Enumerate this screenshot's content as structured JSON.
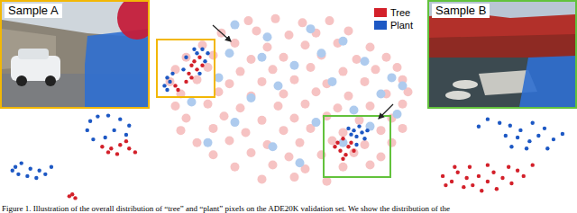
{
  "figure": {
    "caption": "Figure 1. Illustration of the overall distribution of “tree” and “plant” pixels on the ADE20K validation set. We show the distribution of the",
    "sample_a": {
      "label": "Sample A",
      "border_color": "#f2b705"
    },
    "sample_b": {
      "label": "Sample B",
      "border_color": "#62c23c"
    }
  },
  "chart_data": [
    {
      "type": "scatter",
      "xlim": [
        0,
        100
      ],
      "ylim": [
        0,
        100
      ],
      "tick_labels": false,
      "legend": "top-right",
      "series": [
        {
          "color": "#f6c3c3",
          "x": [
            35,
            45,
            55,
            65,
            25,
            38,
            50,
            60,
            72,
            18,
            30,
            42,
            56,
            68,
            80,
            12,
            22,
            36,
            48,
            62,
            75,
            86,
            8,
            20,
            32,
            44,
            58,
            70,
            82,
            90,
            6,
            16,
            28,
            40,
            52,
            64,
            78,
            92,
            10,
            24,
            36,
            48,
            60,
            72,
            86,
            94,
            8,
            20,
            32,
            46,
            56,
            68,
            80,
            92,
            12,
            26,
            40,
            52,
            64,
            76,
            88,
            10,
            22,
            34,
            48,
            58,
            70,
            84,
            92,
            16,
            28,
            42,
            54,
            66,
            78,
            88,
            22,
            36,
            50,
            62,
            74,
            84,
            30,
            44,
            56,
            70,
            80,
            40,
            52,
            64
          ],
          "y": [
            90,
            91,
            89,
            90,
            84,
            85,
            83,
            84,
            85,
            78,
            79,
            77,
            78,
            79,
            77,
            72,
            73,
            71,
            72,
            73,
            71,
            72,
            66,
            67,
            65,
            66,
            67,
            65,
            66,
            67,
            60,
            61,
            59,
            60,
            61,
            59,
            60,
            61,
            54,
            55,
            53,
            54,
            55,
            53,
            54,
            55,
            48,
            49,
            47,
            48,
            49,
            47,
            48,
            49,
            42,
            43,
            41,
            42,
            43,
            41,
            42,
            36,
            37,
            35,
            36,
            37,
            35,
            36,
            37,
            30,
            31,
            29,
            30,
            31,
            29,
            30,
            24,
            25,
            23,
            24,
            25,
            23,
            18,
            19,
            17,
            18,
            19,
            12,
            13,
            11
          ]
        },
        {
          "color": "#aecbee",
          "x": [
            30,
            42,
            58,
            70,
            62,
            78,
            88,
            84,
            90,
            52,
            40,
            24,
            14,
            46,
            66,
            74,
            60,
            30,
            20,
            44,
            70,
            80,
            54,
            36,
            92,
            28
          ],
          "y": [
            88,
            82,
            86,
            80,
            74,
            70,
            62,
            54,
            44,
            68,
            72,
            62,
            50,
            58,
            60,
            46,
            40,
            40,
            30,
            28,
            30,
            38,
            20,
            52,
            58,
            74
          ]
        },
        {
          "name": "Tree",
          "color": "#d3202a",
          "x": [
            14,
            15,
            16,
            13,
            17,
            12,
            14,
            18,
            8,
            9,
            68,
            69,
            70,
            71,
            72,
            70,
            73,
            67,
            74
          ],
          "y": [
            68,
            70,
            66,
            64,
            72,
            60,
            62,
            68,
            58,
            56,
            30,
            26,
            32,
            24,
            28,
            22,
            30,
            28,
            26
          ]
        },
        {
          "name": "Plant",
          "color": "#1d58c4",
          "x": [
            5,
            6,
            4,
            7,
            5,
            16,
            18,
            15,
            17,
            19,
            12,
            11,
            20,
            74,
            75,
            76,
            77,
            73,
            78,
            75,
            79,
            72
          ],
          "y": [
            62,
            60,
            58,
            64,
            56,
            74,
            76,
            76,
            64,
            70,
            72,
            66,
            74,
            36,
            33,
            38,
            35,
            34,
            32,
            29,
            36,
            37
          ]
        }
      ]
    },
    {
      "type": "scatter",
      "xlim": [
        0,
        100
      ],
      "ylim": [
        0,
        100
      ],
      "tick_labels": false,
      "series": [
        {
          "name": "Plant",
          "color": "#1d58c4",
          "x": [
            60,
            65,
            72,
            80,
            86,
            84,
            58,
            62,
            70,
            76,
            10,
            14,
            20,
            26,
            18,
            30,
            12,
            24,
            34,
            8
          ],
          "y": [
            90,
            95,
            96,
            92,
            85,
            75,
            80,
            70,
            72,
            80,
            40,
            44,
            38,
            36,
            30,
            32,
            32,
            28,
            40,
            36
          ]
        },
        {
          "name": "Tree",
          "color": "#d3202a",
          "x": [
            68,
            74,
            80,
            86,
            78,
            72,
            84,
            90,
            46,
            48,
            50
          ],
          "y": [
            62,
            60,
            64,
            60,
            54,
            56,
            68,
            56,
            8,
            10,
            6
          ]
        }
      ]
    },
    {
      "type": "scatter",
      "xlim": [
        0,
        100
      ],
      "ylim": [
        0,
        100
      ],
      "tick_labels": false,
      "series": [
        {
          "name": "Plant",
          "color": "#1d58c4",
          "x": [
            40,
            48,
            55,
            62,
            70,
            78,
            60,
            68,
            52,
            74,
            84,
            66,
            56,
            80,
            90,
            34
          ],
          "y": [
            92,
            88,
            85,
            80,
            88,
            82,
            72,
            68,
            74,
            74,
            70,
            60,
            62,
            60,
            76,
            84
          ]
        },
        {
          "name": "Tree",
          "color": "#d3202a",
          "x": [
            10,
            16,
            20,
            26,
            30,
            24,
            34,
            40,
            44,
            50,
            56,
            36,
            46,
            60,
            64,
            18,
            28,
            54,
            70,
            12,
            40
          ],
          "y": [
            30,
            24,
            34,
            28,
            20,
            18,
            30,
            24,
            34,
            28,
            22,
            14,
            16,
            36,
            30,
            40,
            40,
            40,
            42,
            20,
            42
          ]
        }
      ]
    }
  ]
}
